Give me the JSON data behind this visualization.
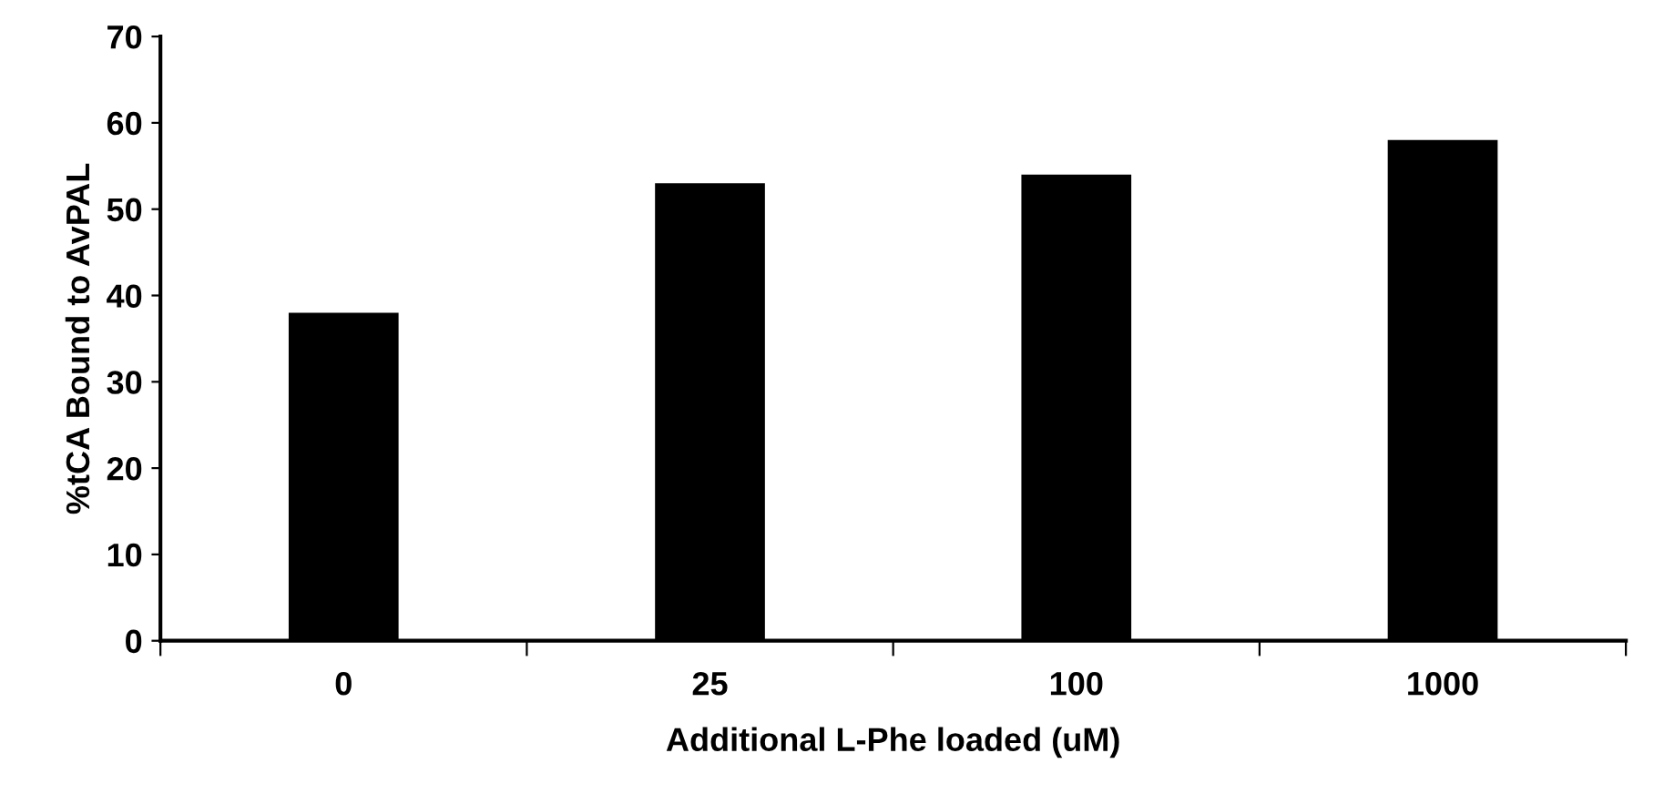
{
  "chart_data": {
    "type": "bar",
    "xlabel": "Additional L-Phe loaded (uM)",
    "ylabel": "%tCA Bound to AvPAL",
    "categories": [
      "0",
      "25",
      "100",
      "1000"
    ],
    "values": [
      38,
      53,
      54,
      58
    ],
    "color": "#000000",
    "ylim": [
      0,
      70
    ],
    "yticks": [
      0,
      10,
      20,
      30,
      40,
      50,
      60,
      70
    ],
    "grid": false,
    "legend": false
  }
}
